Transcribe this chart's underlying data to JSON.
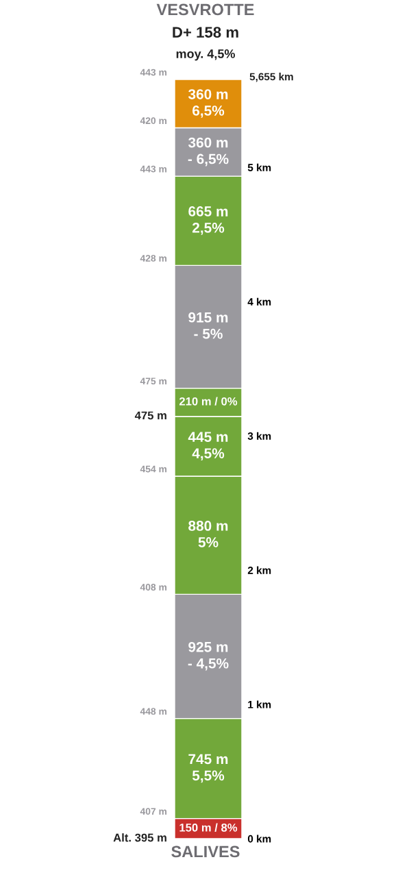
{
  "chart_data": {
    "type": "bar",
    "stacked": true,
    "title": "VESVROTTE",
    "subtitle": "D+ 158 m",
    "xlabel": "SALIVES",
    "categories": [
      null
    ],
    "series": [
      {
        "color": "#c9302c",
        "values": [
          0.15
        ]
      },
      {
        "color": "#72a83a",
        "values": [
          0.745
        ]
      },
      {
        "color": "#9a999e",
        "values": [
          0.925
        ]
      },
      {
        "color": "#72a83a",
        "values": [
          0.88
        ]
      },
      {
        "color": "#72a83a",
        "values": [
          0.445
        ]
      },
      {
        "color": "#72a83a",
        "values": [
          0.21
        ]
      },
      {
        "color": "#9a999e",
        "values": [
          0.915
        ]
      },
      {
        "color": "#72a83a",
        "values": [
          0.665
        ]
      },
      {
        "color": "#9a999e",
        "values": [
          0.36
        ]
      },
      {
        "color": "#e08e0b",
        "values": [
          0.36
        ]
      }
    ],
    "ylim": [
      0,
      5.655
    ],
    "yticks": [
      {
        "value": 0,
        "label": "0 km"
      },
      {
        "value": 1,
        "label": "1 km"
      },
      {
        "value": 2,
        "label": "2 km"
      },
      {
        "value": 3,
        "label": "3 km"
      },
      {
        "value": 4,
        "label": "4 km"
      },
      {
        "value": 5,
        "label": "5 km"
      }
    ],
    "annotations": [
      "moy. 4,5%",
      "Alt. 395 m",
      "407 m",
      "448 m",
      "408 m",
      "454 m",
      "475 m",
      "475 m",
      "428 m",
      "443 m",
      "420 m",
      "443 m",
      "5,655 km",
      "150 m / 8%",
      "745 m\n5,5%",
      "925 m\n- 4,5%",
      "880 m\n5%",
      "445 m\n4,5%",
      "210 m / 0%",
      "915 m\n- 5%",
      "665 m\n2,5%",
      "360 m\n- 6,5%",
      "360 m\n6,5%"
    ],
    "grid": false
  }
}
